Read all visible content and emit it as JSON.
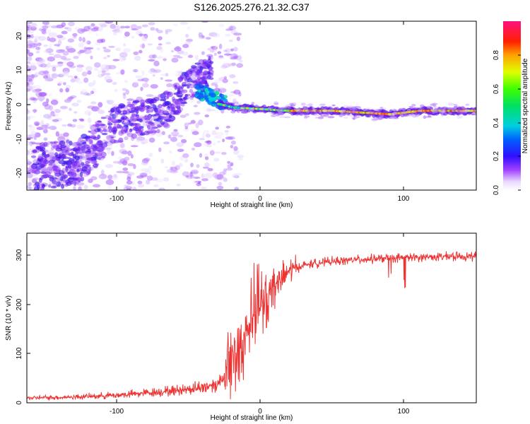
{
  "title": "S126.2025.276.21.32.C37",
  "chart_data": [
    {
      "type": "heatmap",
      "name": "spectrogram",
      "xlabel": "Height of straight line (km)",
      "ylabel": "Frequency (Hz)",
      "xlim": [
        -164,
        150
      ],
      "ylim": [
        -25,
        24
      ],
      "xticks": [
        -100,
        0,
        100
      ],
      "yticks": [
        -20,
        -10,
        0,
        10,
        20
      ],
      "colorbar": {
        "label": "Normalized spectral amplitude",
        "range": [
          0,
          1
        ],
        "ticks": [
          0.0,
          0.2,
          0.4,
          0.6,
          0.8
        ],
        "tick_labels": [
          "0.0",
          "0.2",
          "0.4",
          "0.6",
          "0.8"
        ]
      },
      "ridge": {
        "description_points_x": [
          -30,
          -20,
          0,
          20,
          50,
          70,
          90,
          110,
          150
        ],
        "description_points_y": [
          0,
          -1,
          -1.5,
          -2,
          -2,
          -2.5,
          -3,
          -2,
          -2
        ]
      }
    },
    {
      "type": "line",
      "name": "snr",
      "xlabel": "Height of straight line (km)",
      "ylabel": "SNR (10 * v/v)",
      "xlim": [
        -164,
        150
      ],
      "ylim": [
        0,
        345
      ],
      "xticks": [
        -100,
        0,
        100
      ],
      "yticks": [
        0,
        100,
        200,
        300
      ],
      "color": "#ee3333",
      "envelope": {
        "x": [
          -164,
          -140,
          -120,
          -100,
          -80,
          -60,
          -40,
          -30,
          -25,
          -20,
          -15,
          -10,
          -5,
          0,
          5,
          10,
          15,
          20,
          30,
          40,
          60,
          80,
          100,
          120,
          150
        ],
        "y": [
          10,
          11,
          13,
          16,
          20,
          25,
          32,
          40,
          60,
          90,
          120,
          150,
          175,
          200,
          220,
          240,
          255,
          270,
          280,
          285,
          290,
          293,
          295,
          297,
          298
        ]
      }
    }
  ],
  "labels": {
    "tick_neg100": "-100",
    "tick_0": "0",
    "tick_100": "100",
    "tick_y20": "20",
    "tick_y10": "10",
    "tick_y0": "0",
    "tick_yn10": "-10",
    "tick_yn20": "-20",
    "tick_s0": "0",
    "tick_s100": "100",
    "tick_s200": "200",
    "tick_s300": "300"
  }
}
